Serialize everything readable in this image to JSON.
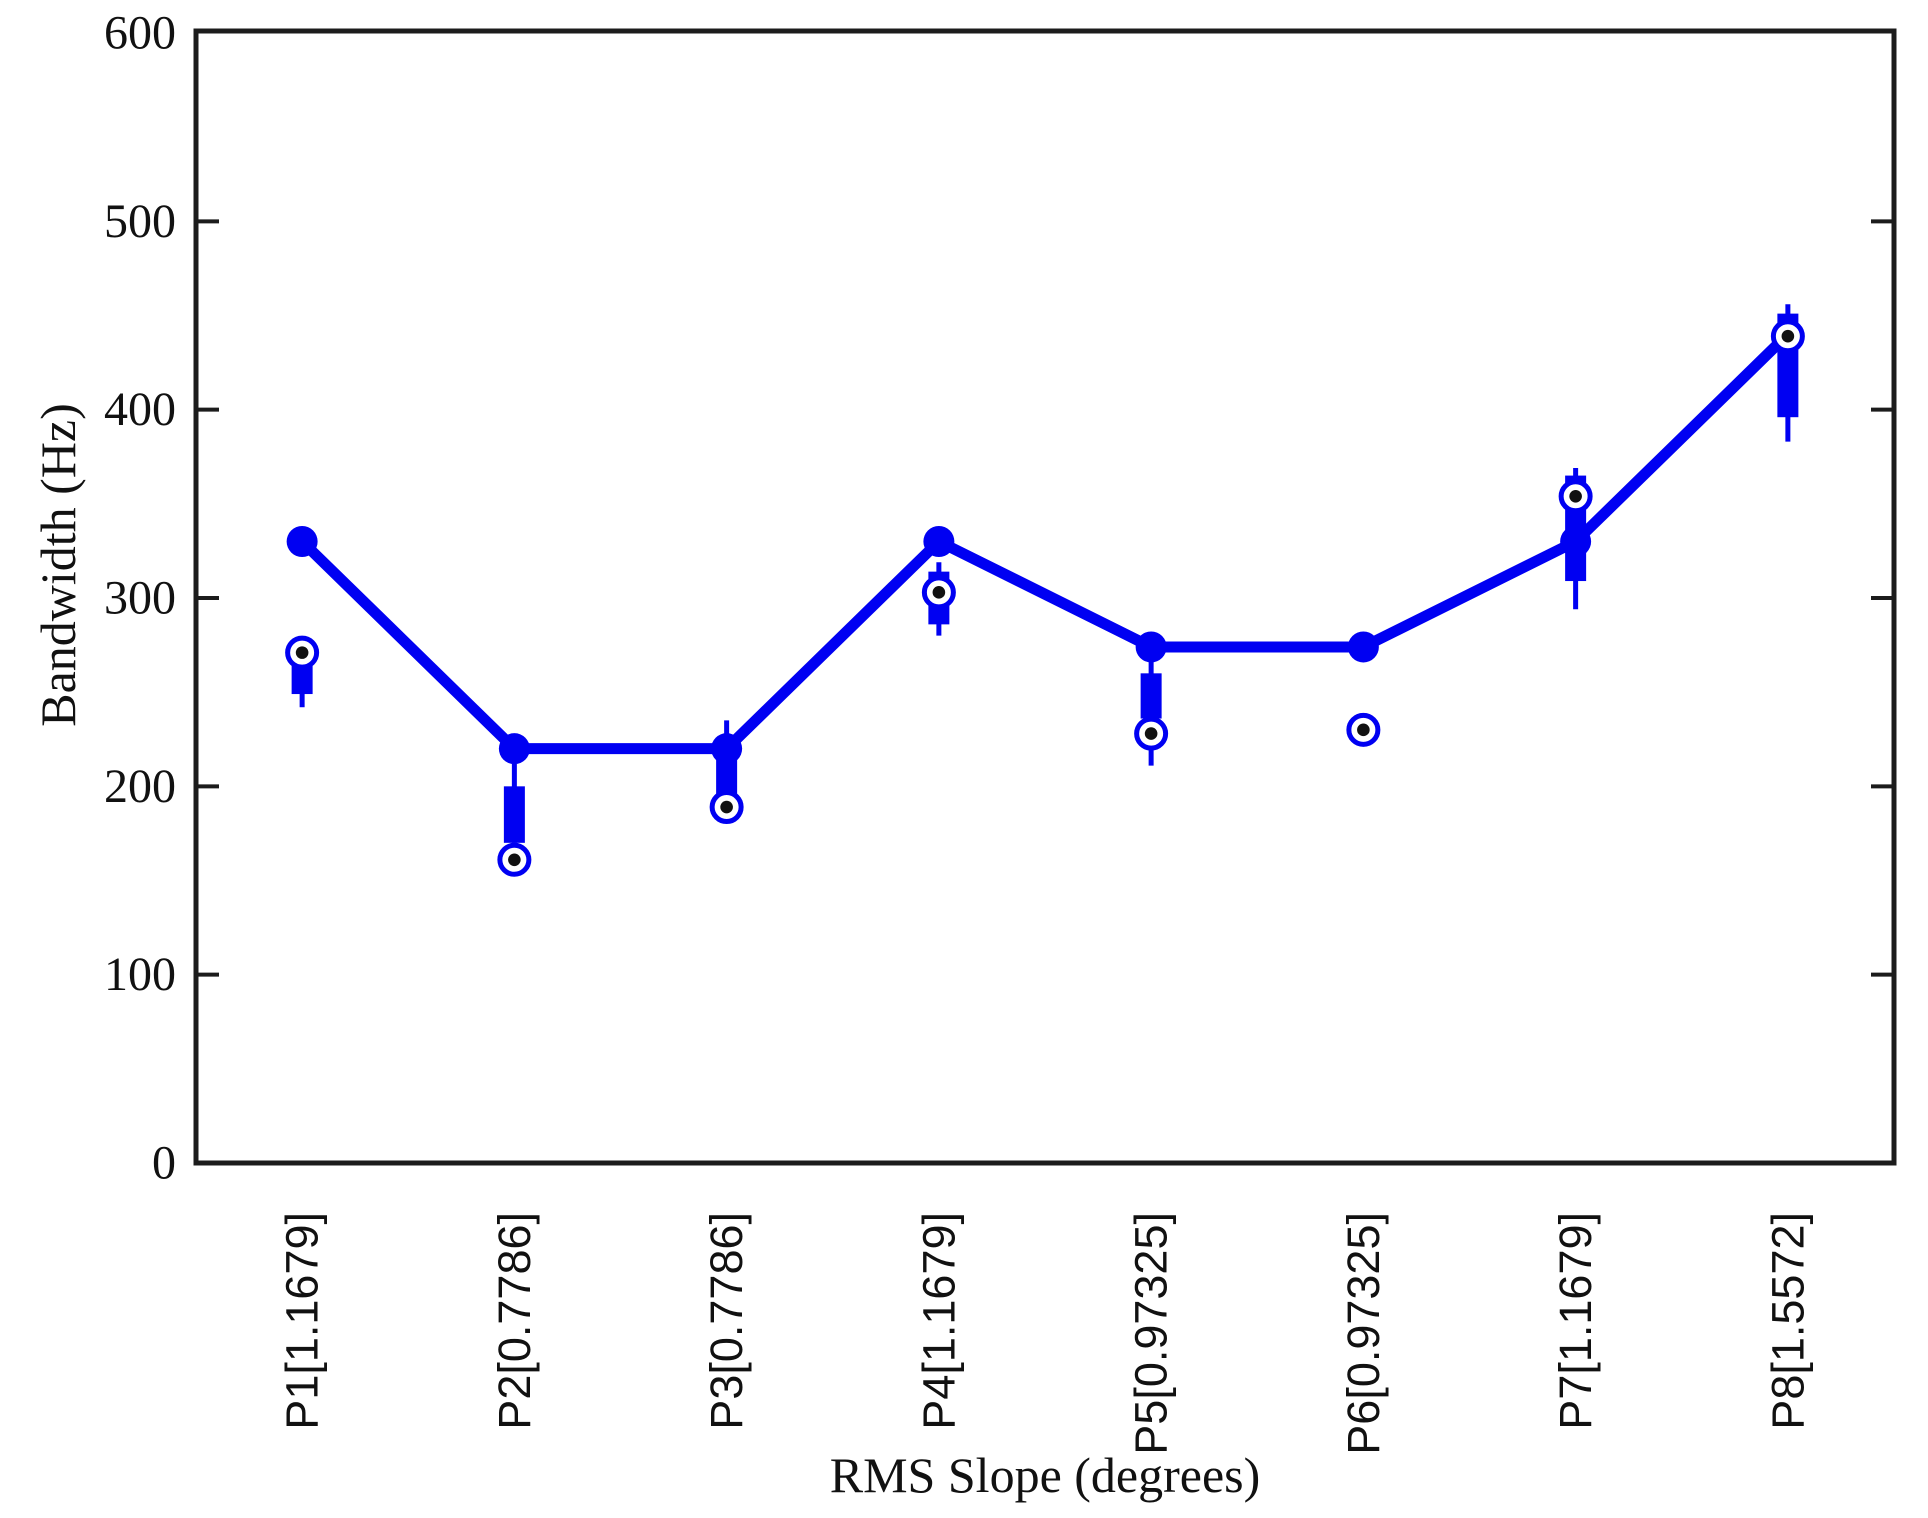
{
  "figure": {
    "background": "#ffffff"
  },
  "chart_data": {
    "type": "line+boxplot",
    "title": "",
    "xlabel": "RMS Slope (degrees)",
    "ylabel": "Bandwidth (Hz)",
    "ylim": [
      0,
      600
    ],
    "yticks": [
      0,
      100,
      200,
      300,
      400,
      500,
      600
    ],
    "grid": false,
    "legend": "none",
    "categories": [
      "P1[1.1679]",
      "P2[0.7786]",
      "P3[0.7786]",
      "P4[1.1679]",
      "P5[0.97325]",
      "P6[0.97325]",
      "P7[1.1679]",
      "P8[1.5572]"
    ],
    "line_series": {
      "name": "bandwidth-trend-line",
      "values": [
        330,
        220,
        220,
        330,
        274,
        274,
        330,
        440
      ]
    },
    "boxplots": [
      {
        "category": "P1[1.1679]",
        "box_low": 249,
        "box_high": 264,
        "whisker_low": 242,
        "whisker_high": null,
        "circle": 271
      },
      {
        "category": "P2[0.7786]",
        "box_low": 170,
        "box_high": 200,
        "whisker_low": null,
        "whisker_high": 212,
        "circle": 161
      },
      {
        "category": "P3[0.7786]",
        "box_low": 196,
        "box_high": 215,
        "whisker_low": null,
        "whisker_high": 235,
        "circle": 189
      },
      {
        "category": "P4[1.1679]",
        "box_low": 286,
        "box_high": 314,
        "whisker_low": 280,
        "whisker_high": 319,
        "circle": 303
      },
      {
        "category": "P5[0.97325]",
        "box_low": 236,
        "box_high": 260,
        "whisker_low": 211,
        "whisker_high": 266,
        "circle": 228
      },
      {
        "category": "P6[0.97325]",
        "box_low": null,
        "box_high": null,
        "whisker_low": null,
        "whisker_high": null,
        "circle": 230
      },
      {
        "category": "P7[1.1679]",
        "box_low": 309,
        "box_high": 365,
        "whisker_low": 294,
        "whisker_high": 369,
        "circle": 354
      },
      {
        "category": "P8[1.5572]",
        "box_low": 396,
        "box_high": 451,
        "whisker_low": 383,
        "whisker_high": 456,
        "circle": 439
      }
    ],
    "colors": {
      "data": "#0000f2",
      "axis": "#1c1c1c",
      "text": "#111111",
      "outlier_dot": "#111111",
      "background": "#ffffff"
    }
  }
}
